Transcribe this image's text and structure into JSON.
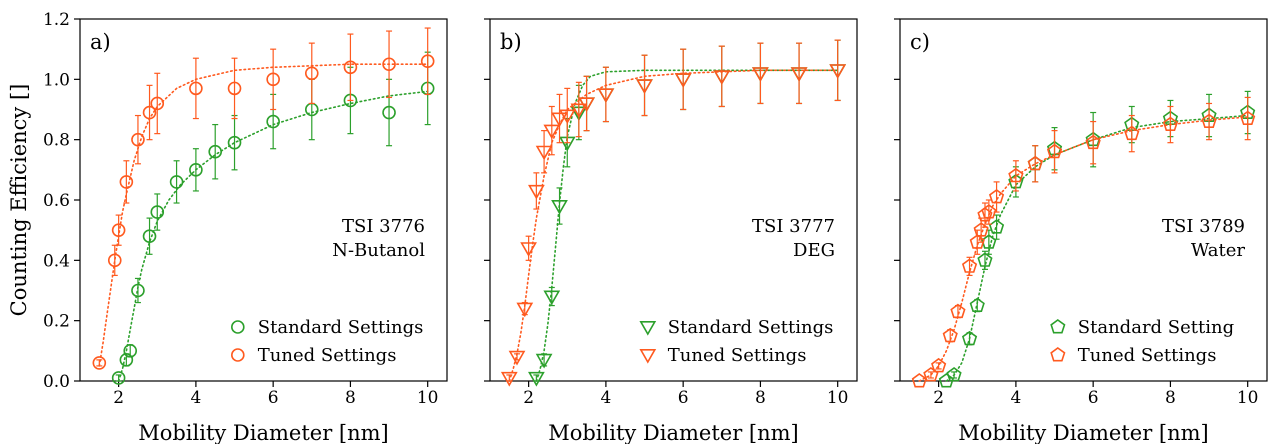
{
  "figure": {
    "ylabel": "Counting Efficiency []",
    "xlabel": "Mobility Diameter [nm]"
  },
  "colors": {
    "standard": "#2ca02c",
    "tuned": "#ff5a1f"
  },
  "x_ticks": [
    2,
    4,
    6,
    8,
    10
  ],
  "y_ticks": [
    "0.0",
    "0.2",
    "0.4",
    "0.6",
    "0.8",
    "1.0",
    "1.2"
  ],
  "chart_data": [
    {
      "type": "scatter",
      "panel": "a)",
      "annotation": [
        "TSI 3776",
        "N-Butanol"
      ],
      "xlabel": "Mobility Diameter [nm]",
      "ylabel": "Counting Efficiency []",
      "xlim": [
        1.0,
        10.5
      ],
      "ylim": [
        0.0,
        1.2
      ],
      "marker": "circle",
      "legend_position": "bottom-right",
      "series": [
        {
          "name": "Standard Settings",
          "color": "#2ca02c",
          "x": [
            2.0,
            2.2,
            2.3,
            2.5,
            2.8,
            3.0,
            3.5,
            4.0,
            4.5,
            5.0,
            6.0,
            7.0,
            8.0,
            9.0,
            10.0
          ],
          "y": [
            0.01,
            0.07,
            0.1,
            0.3,
            0.48,
            0.56,
            0.66,
            0.7,
            0.76,
            0.79,
            0.86,
            0.9,
            0.93,
            0.89,
            0.97
          ],
          "err": [
            0.01,
            0.02,
            0.02,
            0.04,
            0.06,
            0.06,
            0.07,
            0.07,
            0.09,
            0.09,
            0.09,
            0.1,
            0.11,
            0.11,
            0.12
          ],
          "fit_x": [
            2.0,
            2.1,
            2.2,
            2.3,
            2.4,
            2.5,
            2.6,
            2.8,
            3.0,
            3.3,
            3.6,
            4.0,
            4.5,
            5.0,
            6.0,
            7.0,
            8.0,
            9.0,
            10.0
          ],
          "fit_y": [
            0.0,
            0.04,
            0.1,
            0.17,
            0.24,
            0.31,
            0.37,
            0.46,
            0.53,
            0.6,
            0.65,
            0.7,
            0.75,
            0.79,
            0.85,
            0.89,
            0.92,
            0.945,
            0.96
          ]
        },
        {
          "name": "Tuned Settings",
          "color": "#ff5a1f",
          "x": [
            1.5,
            1.9,
            2.0,
            2.2,
            2.5,
            2.8,
            3.0,
            4.0,
            5.0,
            6.0,
            7.0,
            8.0,
            9.0,
            10.0
          ],
          "y": [
            0.06,
            0.4,
            0.5,
            0.66,
            0.8,
            0.89,
            0.92,
            0.97,
            0.97,
            1.0,
            1.02,
            1.04,
            1.05,
            1.06
          ],
          "err": [
            0.01,
            0.05,
            0.05,
            0.07,
            0.08,
            0.09,
            0.1,
            0.1,
            0.1,
            0.1,
            0.1,
            0.11,
            0.11,
            0.11
          ],
          "fit_x": [
            1.5,
            1.6,
            1.7,
            1.8,
            1.9,
            2.0,
            2.1,
            2.2,
            2.4,
            2.6,
            2.8,
            3.0,
            3.5,
            4.0,
            5.0,
            6.0,
            8.0,
            10.0
          ],
          "fit_y": [
            0.05,
            0.13,
            0.22,
            0.31,
            0.4,
            0.48,
            0.56,
            0.62,
            0.73,
            0.81,
            0.87,
            0.91,
            0.97,
            1.0,
            1.03,
            1.04,
            1.05,
            1.05
          ]
        }
      ]
    },
    {
      "type": "scatter",
      "panel": "b)",
      "annotation": [
        "TSI 3777",
        "DEG"
      ],
      "xlabel": "Mobility Diameter [nm]",
      "ylabel": "",
      "xlim": [
        1.0,
        10.5
      ],
      "ylim": [
        0.0,
        1.2
      ],
      "marker": "triangle-down",
      "legend_position": "bottom-right",
      "series": [
        {
          "name": "Standard Settings",
          "color": "#2ca02c",
          "x": [
            2.2,
            2.4,
            2.6,
            2.8,
            3.0,
            3.3,
            3.5,
            4.0,
            5.0,
            6.0,
            7.0,
            8.0,
            9.0,
            10.0
          ],
          "y": [
            0.01,
            0.07,
            0.28,
            0.58,
            0.79,
            0.89,
            0.92,
            0.95,
            0.98,
            1.0,
            1.01,
            1.02,
            1.02,
            1.03
          ],
          "err": [
            0.01,
            0.02,
            0.03,
            0.06,
            0.08,
            0.09,
            0.09,
            0.09,
            0.1,
            0.1,
            0.1,
            0.1,
            0.1,
            0.1
          ],
          "fit_x": [
            2.2,
            2.3,
            2.4,
            2.5,
            2.6,
            2.7,
            2.8,
            2.9,
            3.0,
            3.2,
            3.4,
            3.6,
            4.0,
            5.0,
            6.0,
            8.0,
            10.0
          ],
          "fit_y": [
            0.0,
            0.04,
            0.1,
            0.19,
            0.31,
            0.45,
            0.59,
            0.71,
            0.81,
            0.92,
            0.98,
            1.01,
            1.025,
            1.03,
            1.03,
            1.03,
            1.03
          ]
        },
        {
          "name": "Tuned Settings",
          "color": "#ff5a1f",
          "x": [
            1.5,
            1.7,
            1.9,
            2.0,
            2.2,
            2.4,
            2.6,
            2.8,
            3.0,
            3.3,
            3.5,
            4.0,
            5.0,
            6.0,
            7.0,
            8.0,
            9.0,
            10.0
          ],
          "y": [
            0.01,
            0.08,
            0.24,
            0.44,
            0.63,
            0.76,
            0.83,
            0.87,
            0.88,
            0.9,
            0.92,
            0.95,
            0.98,
            1.0,
            1.01,
            1.02,
            1.02,
            1.03
          ],
          "err": [
            0.01,
            0.01,
            0.02,
            0.04,
            0.06,
            0.07,
            0.08,
            0.08,
            0.09,
            0.09,
            0.09,
            0.09,
            0.1,
            0.1,
            0.1,
            0.1,
            0.1,
            0.1
          ],
          "fit_x": [
            1.5,
            1.6,
            1.7,
            1.8,
            1.9,
            2.0,
            2.1,
            2.2,
            2.4,
            2.6,
            2.8,
            3.0,
            3.5,
            4.0,
            5.0,
            6.0,
            8.0,
            10.0
          ],
          "fit_y": [
            0.0,
            0.04,
            0.09,
            0.16,
            0.25,
            0.35,
            0.45,
            0.54,
            0.68,
            0.79,
            0.85,
            0.9,
            0.95,
            0.98,
            1.01,
            1.02,
            1.03,
            1.03
          ]
        }
      ]
    },
    {
      "type": "scatter",
      "panel": "c)",
      "annotation": [
        "TSI 3789",
        "Water"
      ],
      "xlabel": "Mobility Diameter [nm]",
      "ylabel": "",
      "xlim": [
        1.0,
        10.5
      ],
      "ylim": [
        0.0,
        1.2
      ],
      "marker": "pentagon",
      "legend_position": "bottom-right",
      "series": [
        {
          "name": "Standard Setting",
          "color": "#2ca02c",
          "x": [
            2.2,
            2.4,
            2.8,
            3.0,
            3.2,
            3.3,
            3.5,
            4.0,
            4.5,
            5.0,
            6.0,
            7.0,
            8.0,
            9.0,
            10.0
          ],
          "y": [
            0.0,
            0.02,
            0.14,
            0.25,
            0.4,
            0.46,
            0.51,
            0.66,
            0.72,
            0.77,
            0.8,
            0.85,
            0.87,
            0.88,
            0.89
          ],
          "err": [
            0.0,
            0.01,
            0.02,
            0.02,
            0.03,
            0.04,
            0.04,
            0.05,
            0.06,
            0.07,
            0.09,
            0.06,
            0.06,
            0.07,
            0.07
          ],
          "fit_x": [
            2.2,
            2.4,
            2.6,
            2.8,
            3.0,
            3.2,
            3.4,
            3.6,
            4.0,
            4.5,
            5.0,
            6.0,
            7.0,
            8.0,
            9.0,
            10.0
          ],
          "fit_y": [
            0.0,
            0.02,
            0.06,
            0.14,
            0.26,
            0.38,
            0.48,
            0.55,
            0.65,
            0.71,
            0.75,
            0.8,
            0.84,
            0.86,
            0.87,
            0.88
          ]
        },
        {
          "name": "Tuned Settings",
          "color": "#ff5a1f",
          "x": [
            1.5,
            1.8,
            2.0,
            2.3,
            2.5,
            2.8,
            3.0,
            3.1,
            3.2,
            3.3,
            3.5,
            4.0,
            4.5,
            5.0,
            6.0,
            7.0,
            8.0,
            9.0,
            10.0
          ],
          "y": [
            0.0,
            0.02,
            0.05,
            0.15,
            0.23,
            0.38,
            0.46,
            0.5,
            0.55,
            0.56,
            0.61,
            0.68,
            0.72,
            0.76,
            0.79,
            0.82,
            0.85,
            0.86,
            0.87
          ],
          "err": [
            0.0,
            0.01,
            0.01,
            0.02,
            0.02,
            0.03,
            0.04,
            0.04,
            0.04,
            0.04,
            0.05,
            0.05,
            0.06,
            0.07,
            0.07,
            0.06,
            0.06,
            0.06,
            0.07
          ],
          "fit_x": [
            1.5,
            1.8,
            2.0,
            2.2,
            2.4,
            2.6,
            2.8,
            3.0,
            3.2,
            3.4,
            3.6,
            4.0,
            4.5,
            5.0,
            6.0,
            7.0,
            8.0,
            9.0,
            10.0
          ],
          "fit_y": [
            0.0,
            0.02,
            0.05,
            0.1,
            0.17,
            0.26,
            0.36,
            0.45,
            0.52,
            0.58,
            0.62,
            0.68,
            0.72,
            0.75,
            0.8,
            0.83,
            0.85,
            0.865,
            0.875
          ]
        }
      ]
    }
  ]
}
